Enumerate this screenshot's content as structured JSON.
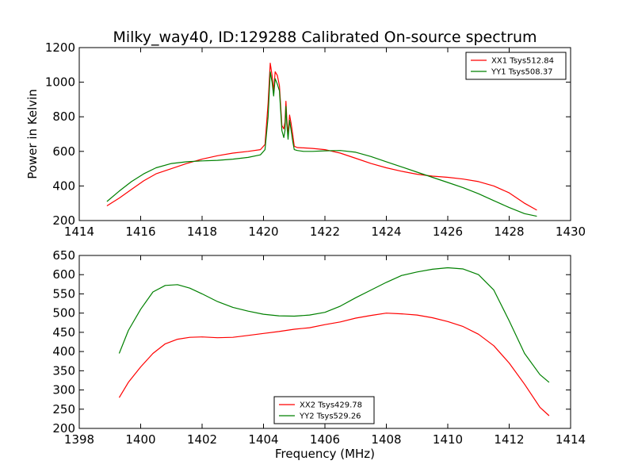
{
  "title": "Milky_way40, ID:129288 Calibrated On-source spectrum",
  "chart_data": [
    {
      "type": "line",
      "ylabel": "Power in Kelvin",
      "xlabel": "",
      "xlim": [
        1414,
        1430
      ],
      "ylim": [
        200,
        1200
      ],
      "xticks": [
        "1414",
        "1416",
        "1418",
        "1420",
        "1422",
        "1424",
        "1426",
        "1428",
        "1430"
      ],
      "yticks": [
        "200",
        "400",
        "600",
        "800",
        "1000",
        "1200"
      ],
      "grid": false,
      "legend_position": "top-right",
      "series": [
        {
          "name": "XX1 Tsys512.84",
          "color": "#ff0000",
          "x": [
            1414.9,
            1415.3,
            1415.7,
            1416.1,
            1416.5,
            1417.0,
            1417.5,
            1418.0,
            1418.5,
            1419.0,
            1419.5,
            1419.9,
            1420.05,
            1420.15,
            1420.22,
            1420.28,
            1420.33,
            1420.38,
            1420.45,
            1420.52,
            1420.6,
            1420.66,
            1420.7,
            1420.73,
            1420.76,
            1420.8,
            1420.85,
            1420.9,
            1420.95,
            1421.0,
            1421.1,
            1421.3,
            1421.6,
            1422.0,
            1422.5,
            1423.0,
            1423.5,
            1424.0,
            1424.5,
            1425.0,
            1425.5,
            1426.0,
            1426.5,
            1427.0,
            1427.5,
            1428.0,
            1428.5,
            1428.9
          ],
          "y": [
            285,
            330,
            380,
            430,
            470,
            500,
            530,
            555,
            575,
            590,
            600,
            610,
            640,
            880,
            1110,
            1040,
            950,
            1060,
            1040,
            980,
            750,
            730,
            770,
            890,
            790,
            700,
            810,
            760,
            700,
            630,
            622,
            620,
            617,
            610,
            590,
            560,
            530,
            505,
            485,
            468,
            457,
            450,
            440,
            425,
            400,
            360,
            300,
            260
          ]
        },
        {
          "name": "YY1 Tsys508.37",
          "color": "#008000",
          "x": [
            1414.9,
            1415.3,
            1415.7,
            1416.1,
            1416.5,
            1417.0,
            1417.5,
            1418.0,
            1418.5,
            1419.0,
            1419.5,
            1419.9,
            1420.05,
            1420.15,
            1420.22,
            1420.28,
            1420.33,
            1420.38,
            1420.45,
            1420.52,
            1420.6,
            1420.66,
            1420.7,
            1420.73,
            1420.76,
            1420.8,
            1420.85,
            1420.9,
            1420.95,
            1421.0,
            1421.1,
            1421.3,
            1421.6,
            1422.0,
            1422.5,
            1423.0,
            1423.5,
            1424.0,
            1424.5,
            1425.0,
            1425.5,
            1426.0,
            1426.5,
            1427.0,
            1427.5,
            1428.0,
            1428.5,
            1428.9
          ],
          "y": [
            310,
            370,
            425,
            470,
            505,
            530,
            540,
            545,
            548,
            555,
            565,
            580,
            610,
            800,
            1060,
            1000,
            920,
            1020,
            990,
            950,
            720,
            680,
            720,
            860,
            760,
            670,
            780,
            720,
            660,
            610,
            605,
            600,
            600,
            603,
            605,
            595,
            570,
            540,
            510,
            480,
            450,
            420,
            390,
            355,
            315,
            275,
            240,
            225
          ]
        }
      ]
    },
    {
      "type": "line",
      "ylabel": "",
      "xlabel": "Frequency (MHz)",
      "xlim": [
        1398,
        1414
      ],
      "ylim": [
        200,
        650
      ],
      "xticks": [
        "1398",
        "1400",
        "1402",
        "1404",
        "1406",
        "1408",
        "1410",
        "1412",
        "1414"
      ],
      "yticks": [
        "200",
        "250",
        "300",
        "350",
        "400",
        "450",
        "500",
        "550",
        "600",
        "650"
      ],
      "grid": false,
      "legend_position": "bottom-center",
      "series": [
        {
          "name": "XX2 Tsys429.78",
          "color": "#ff0000",
          "x": [
            1399.3,
            1399.6,
            1400.0,
            1400.4,
            1400.8,
            1401.2,
            1401.6,
            1402.0,
            1402.5,
            1403.0,
            1403.5,
            1404.0,
            1404.5,
            1405.0,
            1405.5,
            1406.0,
            1406.5,
            1407.0,
            1407.5,
            1408.0,
            1408.5,
            1409.0,
            1409.5,
            1410.0,
            1410.5,
            1411.0,
            1411.5,
            1412.0,
            1412.5,
            1413.0,
            1413.3
          ],
          "y": [
            280,
            320,
            360,
            395,
            420,
            432,
            437,
            438,
            436,
            437,
            442,
            447,
            452,
            458,
            462,
            470,
            477,
            487,
            494,
            500,
            498,
            495,
            488,
            478,
            465,
            445,
            415,
            370,
            315,
            255,
            233
          ]
        },
        {
          "name": "YY2 Tsys529.26",
          "color": "#008000",
          "x": [
            1399.3,
            1399.6,
            1400.0,
            1400.4,
            1400.8,
            1401.2,
            1401.6,
            1402.0,
            1402.5,
            1403.0,
            1403.5,
            1404.0,
            1404.5,
            1405.0,
            1405.5,
            1406.0,
            1406.5,
            1407.0,
            1407.5,
            1408.0,
            1408.5,
            1409.0,
            1409.5,
            1410.0,
            1410.5,
            1411.0,
            1411.5,
            1412.0,
            1412.5,
            1413.0,
            1413.3
          ],
          "y": [
            395,
            455,
            510,
            555,
            572,
            574,
            565,
            550,
            530,
            515,
            505,
            497,
            493,
            492,
            495,
            502,
            518,
            540,
            560,
            580,
            598,
            607,
            614,
            618,
            615,
            600,
            560,
            480,
            395,
            340,
            320
          ]
        }
      ]
    }
  ]
}
